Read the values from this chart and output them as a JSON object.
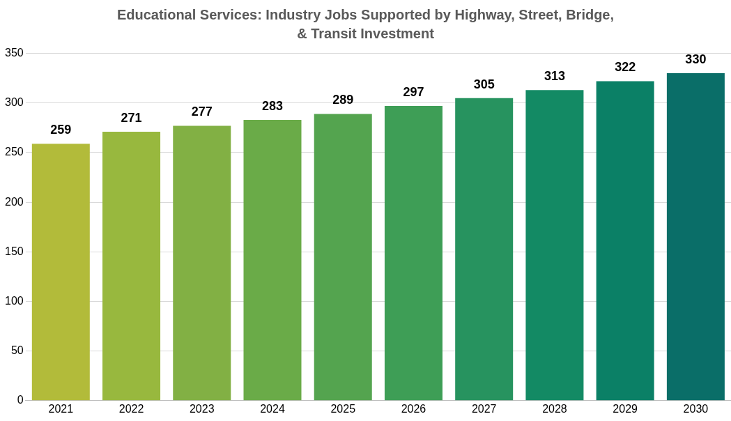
{
  "chart_data": {
    "type": "bar",
    "title": "Educational Services: Industry Jobs Supported by Highway, Street, Bridge, & Transit Investment",
    "categories": [
      "2021",
      "2022",
      "2023",
      "2024",
      "2025",
      "2026",
      "2027",
      "2028",
      "2029",
      "2030"
    ],
    "values": [
      259,
      271,
      277,
      283,
      289,
      297,
      305,
      313,
      322,
      330
    ],
    "colors": [
      "#b2bb3a",
      "#98b83e",
      "#82b044",
      "#6aab48",
      "#54a44f",
      "#3e9e56",
      "#27935f",
      "#138a64",
      "#0b8066",
      "#0a6e68"
    ],
    "ylim": [
      0,
      350
    ],
    "yticks": [
      0,
      50,
      100,
      150,
      200,
      250,
      300,
      350
    ],
    "grid": "y",
    "legend": false,
    "data_labels": true
  }
}
